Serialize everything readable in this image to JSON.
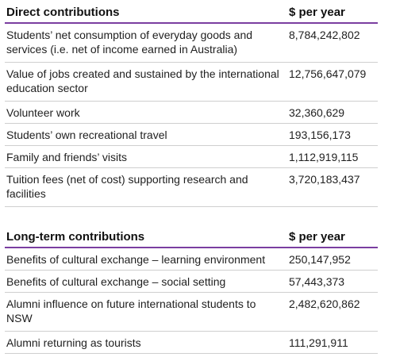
{
  "direct": {
    "heading": "Direct contributions",
    "value_heading": "$ per year",
    "rows": [
      {
        "label": "Students’ net consumption of everyday goods and services (i.e. net of income earned in Australia)",
        "value": "8,784,242,802"
      },
      {
        "label": "Value of jobs created and sustained by the international education sector",
        "value": "12,756,647,079"
      },
      {
        "label": "Volunteer work",
        "value": "32,360,629"
      },
      {
        "label": "Students’ own recreational travel",
        "value": "193,156,173"
      },
      {
        "label": "Family and friends’ visits",
        "value": "1,112,919,115"
      },
      {
        "label": "Tuition fees (net of cost) supporting research and facilities",
        "value": "3,720,183,437"
      }
    ]
  },
  "longterm": {
    "heading": "Long-term contributions",
    "value_heading": "$ per year",
    "rows": [
      {
        "label": "Benefits of cultural exchange – learning environment",
        "value": "250,147,952"
      },
      {
        "label": "Benefits of cultural exchange – social setting",
        "value": "57,443,373"
      },
      {
        "label": "Alumni influence on future international students to NSW",
        "value": "2,482,620,862"
      },
      {
        "label": "Alumni returning as tourists",
        "value": "111,291,911"
      }
    ]
  },
  "colors": {
    "header_rule": "#7a3ea0",
    "row_rule": "#cfcfcf",
    "text": "#1f1f1f"
  }
}
